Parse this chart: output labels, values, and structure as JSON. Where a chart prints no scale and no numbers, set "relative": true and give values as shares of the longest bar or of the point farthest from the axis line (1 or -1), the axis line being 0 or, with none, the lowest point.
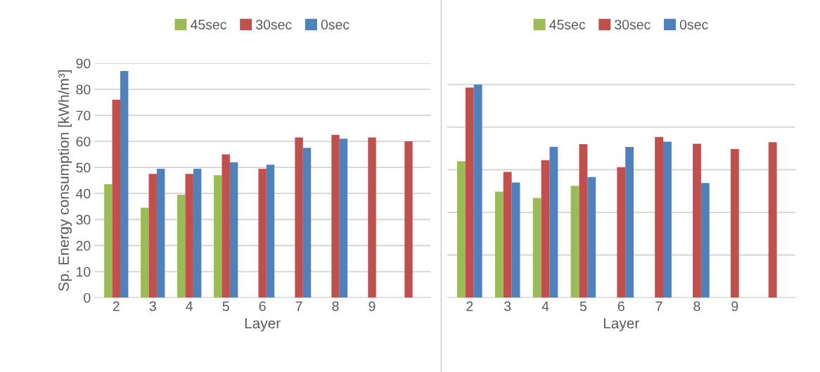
{
  "chart_data": [
    {
      "type": "bar",
      "xlabel": "Layer",
      "ylabel": "Sp. Energy consumption [kWh/m³]",
      "categories": [
        "2",
        "3",
        "4",
        "5",
        "6",
        "7",
        "8",
        "9",
        null
      ],
      "series": [
        {
          "name": "45sec",
          "color": "#9bbb59",
          "values": [
            43.5,
            34.5,
            39.5,
            47,
            null,
            null,
            null,
            null,
            null
          ]
        },
        {
          "name": "30sec",
          "color": "#c0504d",
          "values": [
            76,
            47.5,
            47.5,
            55,
            49.5,
            61.5,
            62.5,
            61.5,
            60
          ]
        },
        {
          "name": "0sec",
          "color": "#4f81bd",
          "values": [
            87,
            49.5,
            49.5,
            52,
            51,
            57.5,
            61,
            null,
            null
          ]
        }
      ],
      "ylim": [
        0,
        90
      ],
      "yticks": [
        0,
        10,
        20,
        30,
        40,
        50,
        60,
        70,
        80,
        90
      ],
      "grid": "y",
      "legend": "top"
    },
    {
      "type": "bar",
      "xlabel": "Layer",
      "categories": [
        "2",
        "3",
        "4",
        "5",
        "6",
        "7",
        "8",
        "9",
        null
      ],
      "relative": true,
      "series": [
        {
          "name": "45sec",
          "color": "#9bbb59",
          "values": [
            0.64,
            0.497,
            0.468,
            0.525,
            null,
            null,
            null,
            null,
            null
          ]
        },
        {
          "name": "30sec",
          "color": "#c0504d",
          "values": [
            0.986,
            0.59,
            0.645,
            0.72,
            0.612,
            0.754,
            0.722,
            0.697,
            0.729
          ]
        },
        {
          "name": "0sec",
          "color": "#4f81bd",
          "values": [
            1,
            0.54,
            0.708,
            0.566,
            0.707,
            0.732,
            0.538,
            null,
            null
          ]
        }
      ],
      "grid": "y",
      "legend": "top"
    }
  ]
}
